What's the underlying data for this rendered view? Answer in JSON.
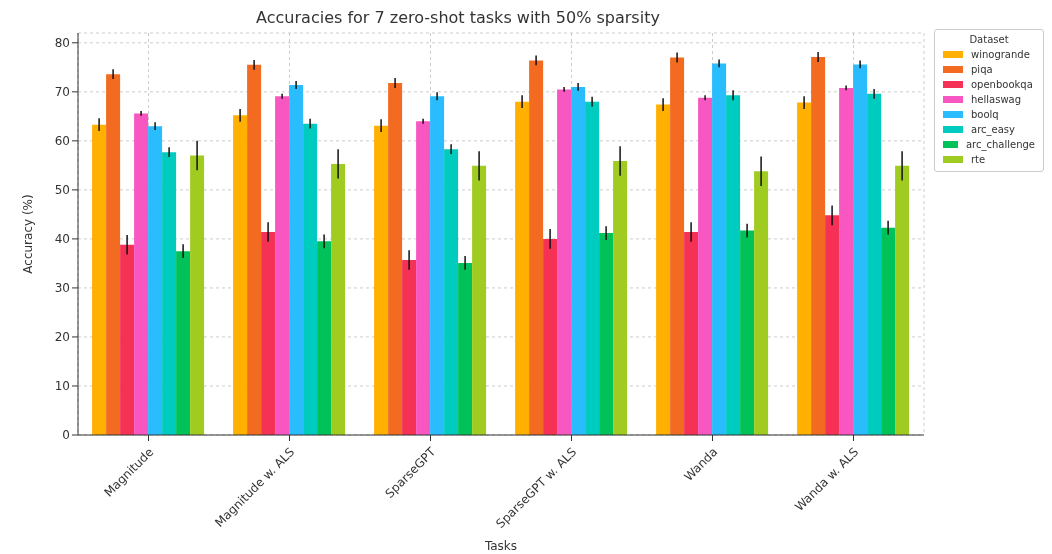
{
  "chart_data": {
    "type": "bar",
    "title": "Accuracies for 7 zero-shot tasks with 50% sparsity",
    "xlabel": "Tasks",
    "ylabel": "Accuracy (%)",
    "legend_title": "Dataset",
    "categories": [
      "Magnitude",
      "Magnitude w. ALS",
      "SparseGPT",
      "SparseGPT w. ALS",
      "Wanda",
      "Wanda w. ALS"
    ],
    "series": [
      {
        "name": "winogrande",
        "color": "#ffb000",
        "values": [
          63.3,
          65.2,
          63.1,
          68.0,
          67.4,
          67.8
        ],
        "errors": [
          1.3,
          1.3,
          1.3,
          1.3,
          1.3,
          1.3
        ]
      },
      {
        "name": "piqa",
        "color": "#f26b21",
        "values": [
          73.6,
          75.5,
          71.8,
          76.4,
          77.0,
          77.1
        ],
        "errors": [
          1.0,
          1.0,
          1.0,
          1.0,
          1.0,
          1.0
        ]
      },
      {
        "name": "openbookqa",
        "color": "#f53255",
        "values": [
          38.8,
          41.4,
          35.7,
          40.0,
          41.4,
          44.8
        ],
        "errors": [
          2.0,
          2.0,
          2.0,
          2.0,
          2.0,
          2.0
        ]
      },
      {
        "name": "hellaswag",
        "color": "#f857c1",
        "values": [
          65.6,
          69.1,
          64.0,
          70.5,
          68.8,
          70.8
        ],
        "errors": [
          0.5,
          0.5,
          0.5,
          0.5,
          0.5,
          0.5
        ]
      },
      {
        "name": "boolq",
        "color": "#29bdfd",
        "values": [
          63.0,
          71.4,
          69.1,
          71.0,
          75.8,
          75.6
        ],
        "errors": [
          0.8,
          0.8,
          0.8,
          0.8,
          0.8,
          0.8
        ]
      },
      {
        "name": "arc_easy",
        "color": "#00cbbf",
        "values": [
          57.7,
          63.5,
          58.3,
          68.0,
          69.3,
          69.6
        ],
        "errors": [
          1.0,
          1.0,
          1.0,
          1.0,
          1.0,
          1.0
        ]
      },
      {
        "name": "arc_challenge",
        "color": "#01c159",
        "values": [
          37.5,
          39.5,
          35.1,
          41.2,
          41.7,
          42.3
        ],
        "errors": [
          1.4,
          1.4,
          1.4,
          1.4,
          1.4,
          1.4
        ]
      },
      {
        "name": "rte",
        "color": "#a0cc22",
        "values": [
          57.0,
          55.3,
          54.9,
          55.9,
          53.8,
          54.9
        ],
        "errors": [
          3.0,
          3.0,
          3.0,
          3.0,
          3.0,
          3.0
        ]
      }
    ],
    "ylim": [
      0,
      82
    ],
    "yticks": [
      0,
      10,
      20,
      30,
      40,
      50,
      60,
      70,
      80
    ],
    "grid": true,
    "legend": "top right"
  }
}
